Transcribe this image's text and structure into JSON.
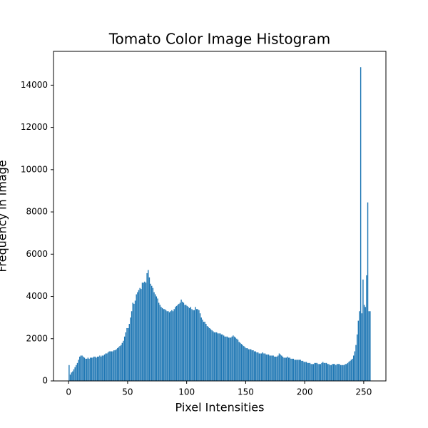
{
  "chart_data": {
    "type": "histogram",
    "title": "Tomato Color Image Histogram",
    "xlabel": "Pixel Intensities",
    "ylabel": "Frequency in image",
    "color": "#1f77b4",
    "bins": [
      0,
      1,
      2,
      3,
      4,
      5,
      6,
      7,
      8,
      9,
      10,
      11,
      12,
      13,
      14,
      15,
      16,
      17,
      18,
      19,
      20,
      21,
      22,
      23,
      24,
      25,
      26,
      27,
      28,
      29,
      30,
      31,
      32,
      33,
      34,
      35,
      36,
      37,
      38,
      39,
      40,
      41,
      42,
      43,
      44,
      45,
      46,
      47,
      48,
      49,
      50,
      51,
      52,
      53,
      54,
      55,
      56,
      57,
      58,
      59,
      60,
      61,
      62,
      63,
      64,
      65,
      66,
      67,
      68,
      69,
      70,
      71,
      72,
      73,
      74,
      75,
      76,
      77,
      78,
      79,
      80,
      81,
      82,
      83,
      84,
      85,
      86,
      87,
      88,
      89,
      90,
      91,
      92,
      93,
      94,
      95,
      96,
      97,
      98,
      99,
      100,
      101,
      102,
      103,
      104,
      105,
      106,
      107,
      108,
      109,
      110,
      111,
      112,
      113,
      114,
      115,
      116,
      117,
      118,
      119,
      120,
      121,
      122,
      123,
      124,
      125,
      126,
      127,
      128,
      129,
      130,
      131,
      132,
      133,
      134,
      135,
      136,
      137,
      138,
      139,
      140,
      141,
      142,
      143,
      144,
      145,
      146,
      147,
      148,
      149,
      150,
      151,
      152,
      153,
      154,
      155,
      156,
      157,
      158,
      159,
      160,
      161,
      162,
      163,
      164,
      165,
      166,
      167,
      168,
      169,
      170,
      171,
      172,
      173,
      174,
      175,
      176,
      177,
      178,
      179,
      180,
      181,
      182,
      183,
      184,
      185,
      186,
      187,
      188,
      189,
      190,
      191,
      192,
      193,
      194,
      195,
      196,
      197,
      198,
      199,
      200,
      201,
      202,
      203,
      204,
      205,
      206,
      207,
      208,
      209,
      210,
      211,
      212,
      213,
      214,
      215,
      216,
      217,
      218,
      219,
      220,
      221,
      222,
      223,
      224,
      225,
      226,
      227,
      228,
      229,
      230,
      231,
      232,
      233,
      234,
      235,
      236,
      237,
      238,
      239,
      240,
      241,
      242,
      243,
      244,
      245,
      246,
      247,
      248,
      249,
      250,
      251,
      252,
      253,
      254,
      255,
      256
    ],
    "counts": [
      750,
      300,
      400,
      450,
      550,
      650,
      750,
      850,
      1000,
      1150,
      1200,
      1200,
      1150,
      1100,
      1050,
      1050,
      1100,
      1050,
      1100,
      1100,
      1100,
      1150,
      1150,
      1100,
      1150,
      1150,
      1200,
      1150,
      1200,
      1200,
      1250,
      1300,
      1300,
      1350,
      1400,
      1400,
      1400,
      1400,
      1450,
      1450,
      1500,
      1550,
      1600,
      1650,
      1700,
      1800,
      1900,
      2100,
      2300,
      2500,
      2500,
      2700,
      3000,
      3300,
      3700,
      3650,
      3800,
      4100,
      4200,
      4300,
      4400,
      4350,
      4650,
      4650,
      4700,
      4650,
      5100,
      5250,
      4900,
      4600,
      4500,
      4400,
      4200,
      4100,
      4000,
      3900,
      3700,
      3600,
      3500,
      3450,
      3400,
      3400,
      3350,
      3300,
      3300,
      3250,
      3300,
      3350,
      3300,
      3400,
      3500,
      3550,
      3600,
      3650,
      3700,
      3850,
      3750,
      3700,
      3600,
      3600,
      3550,
      3500,
      3450,
      3500,
      3400,
      3350,
      3350,
      3500,
      3400,
      3400,
      3350,
      3200,
      3000,
      2900,
      2800,
      2800,
      2700,
      2600,
      2550,
      2500,
      2450,
      2400,
      2350,
      2300,
      2300,
      2300,
      2250,
      2250,
      2250,
      2200,
      2200,
      2150,
      2100,
      2100,
      2100,
      2050,
      2050,
      2050,
      2100,
      2150,
      2100,
      2050,
      2000,
      1950,
      1850,
      1800,
      1750,
      1700,
      1650,
      1600,
      1550,
      1550,
      1500,
      1500,
      1500,
      1450,
      1450,
      1400,
      1400,
      1350,
      1350,
      1300,
      1300,
      1300,
      1350,
      1300,
      1300,
      1250,
      1250,
      1250,
      1200,
      1200,
      1200,
      1200,
      1150,
      1150,
      1150,
      1200,
      1300,
      1250,
      1200,
      1150,
      1100,
      1100,
      1100,
      1150,
      1100,
      1100,
      1050,
      1050,
      1050,
      1000,
      1000,
      1000,
      1000,
      1000,
      1000,
      950,
      950,
      900,
      900,
      900,
      850,
      850,
      850,
      800,
      800,
      800,
      850,
      850,
      850,
      800,
      800,
      800,
      850,
      900,
      850,
      850,
      850,
      800,
      800,
      750,
      750,
      800,
      800,
      800,
      750,
      800,
      800,
      800,
      750,
      750,
      750,
      750,
      800,
      800,
      850,
      900,
      950,
      1000,
      1050,
      1200,
      1400,
      1700,
      2200,
      2850,
      3300,
      14850,
      3200,
      4800,
      3600,
      3500,
      5000,
      8450,
      3300,
      3300
    ],
    "xlim": [
      -12.8,
      268.8
    ],
    "xticks": [
      0,
      50,
      100,
      150,
      200,
      250
    ],
    "ylim": [
      0,
      15600
    ],
    "yticks": [
      0,
      2000,
      4000,
      6000,
      8000,
      10000,
      12000,
      14000
    ]
  }
}
